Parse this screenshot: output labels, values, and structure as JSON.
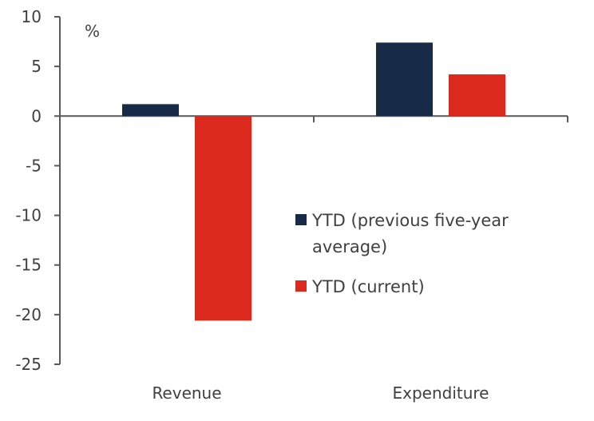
{
  "chart_data": {
    "type": "bar",
    "title": "",
    "unit_label": "%",
    "categories": [
      "Revenue",
      "Expenditure"
    ],
    "series": [
      {
        "name": "YTD (previous five-year average)",
        "legend_lines": [
          "YTD (previous five-year",
          "average)"
        ],
        "values": [
          1.2,
          7.4
        ],
        "color": "#172b49"
      },
      {
        "name": "YTD (current)",
        "legend_lines": [
          "YTD (current)"
        ],
        "values": [
          -20.6,
          4.2
        ],
        "color": "#dc291e"
      }
    ],
    "ylim": [
      -25,
      10
    ],
    "yticks": [
      10,
      5,
      0,
      -5,
      -10,
      -15,
      -20,
      -25
    ],
    "grid": false,
    "legend_placement": "center-right"
  }
}
